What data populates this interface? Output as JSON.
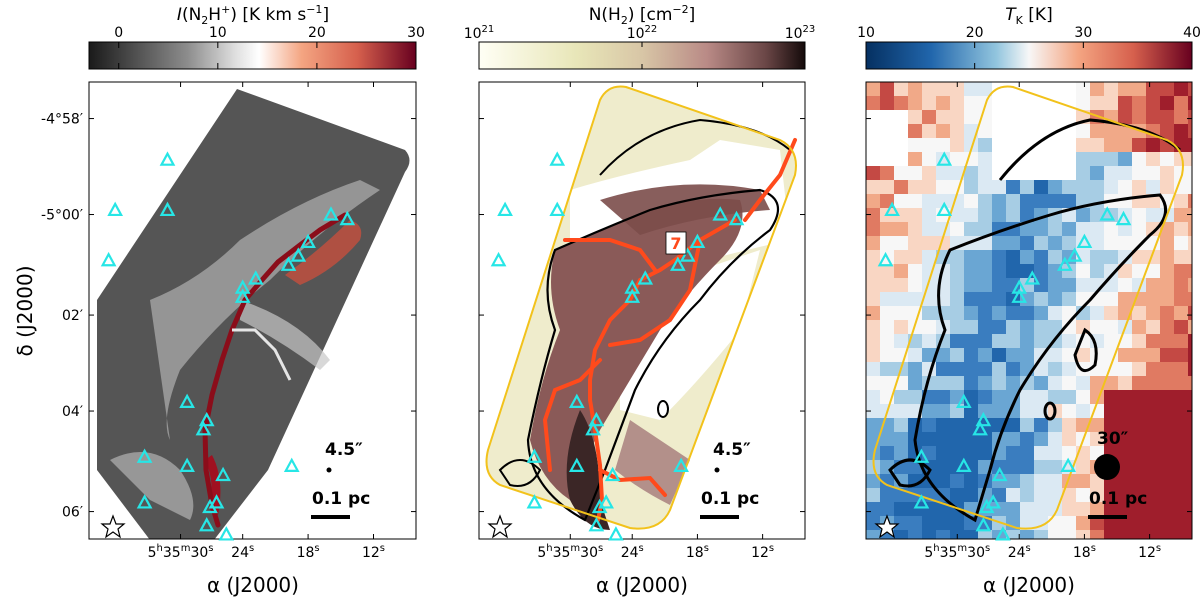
{
  "chart_data": [
    {
      "type": "heatmap",
      "colorbar": {
        "label": "I(N2H+) [K km s-1]",
        "label_parts": {
          "I": "I",
          "species": "(N",
          "sub2": "2",
          "rest": "H",
          "sup": "+",
          "close": ")",
          "unit": " [K km s",
          "unit_sup": "−1",
          "unit_close": "]"
        },
        "ticks": [
          "0",
          "10",
          "20",
          "30"
        ],
        "range": [
          -3,
          30
        ],
        "cmap": "RdGy_r"
      },
      "ylabel": "δ (J2000)",
      "xlabel": "α (J2000)",
      "yticks": [
        "-4°58′",
        "-5°00′",
        "02′",
        "04′",
        "06′"
      ],
      "xticks": [
        "5h35m30s",
        "24s",
        "18s",
        "12s"
      ],
      "beam_label": "4.5″",
      "scalebar_label": "0.1 pc",
      "markers": "cyan triangles (YSOs)",
      "star_marker": "white star"
    },
    {
      "type": "heatmap",
      "colorbar": {
        "label": "N(H2) [cm-2]",
        "label_parts": {
          "n": "N(H",
          "sub2": "2",
          "unit": ") [cm",
          "unit_sup": "−2",
          "close": "]"
        },
        "ticks": [
          "10^21",
          "10^22",
          "10^23"
        ],
        "tick_parts": [
          {
            "base": "10",
            "exp": "21"
          },
          {
            "base": "10",
            "exp": "22"
          },
          {
            "base": "10",
            "exp": "23"
          }
        ],
        "range_log": [
          21,
          23
        ],
        "cmap": "pink_r"
      },
      "xlabel": "α (J2000)",
      "xticks": [
        "5h35m30s",
        "24s",
        "18s",
        "12s"
      ],
      "fiber_label": "7",
      "beam_label": "4.5″",
      "scalebar_label": "0.1 pc"
    },
    {
      "type": "heatmap",
      "colorbar": {
        "label": "TK [K]",
        "label_parts": {
          "t": "T",
          "sub": "K",
          "unit": " [K]"
        },
        "ticks": [
          "10",
          "20",
          "30",
          "40"
        ],
        "range": [
          10,
          40
        ],
        "cmap": "RdBu_r"
      },
      "xlabel": "α (J2000)",
      "xticks": [
        "5h35m30s",
        "24s",
        "18s",
        "12s"
      ],
      "beam_label": "30″",
      "scalebar_label": "0.1 pc"
    }
  ]
}
